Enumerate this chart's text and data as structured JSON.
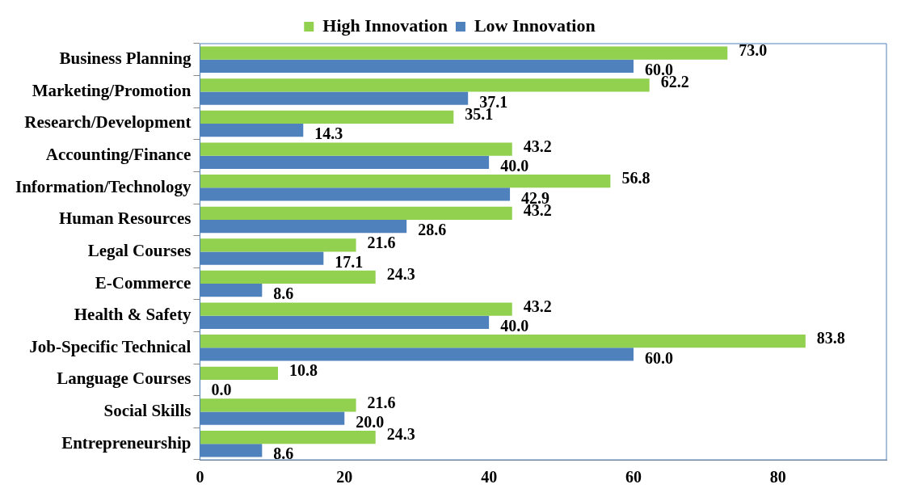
{
  "chart_data": {
    "type": "bar",
    "orientation": "horizontal",
    "categories": [
      "Business Planning",
      "Marketing/Promotion",
      "Research/Development",
      "Accounting/Finance",
      "Information/Technology",
      "Human Resources",
      "Legal Courses",
      "E-Commerce",
      "Health & Safety",
      "Job-Specific Technical",
      "Language Courses",
      "Social Skills",
      "Entrepreneurship"
    ],
    "series": [
      {
        "name": "High Innovation",
        "color": "#92d050",
        "values": [
          73.0,
          62.2,
          35.1,
          43.2,
          56.8,
          43.2,
          21.6,
          24.3,
          43.2,
          83.8,
          10.8,
          21.6,
          24.3
        ],
        "value_labels": [
          "73.0",
          "62.2",
          "35.1",
          "43.2",
          "56.8",
          "43.2",
          "21.6",
          "24.3",
          "43.2",
          "83.8",
          "10.8",
          "21.6",
          "24.3"
        ]
      },
      {
        "name": "Low Innovation",
        "color": "#4f81bd",
        "values": [
          60.0,
          37.1,
          14.3,
          40.0,
          42.9,
          28.6,
          17.1,
          8.6,
          40.0,
          60.0,
          0.0,
          20.0,
          8.6
        ],
        "value_labels": [
          "60.0",
          "37.1",
          "14.3",
          "40.0",
          "42.9",
          "28.6",
          "17.1",
          "8.6",
          "40.0",
          "60.0",
          "0.0",
          "20.0",
          "8.6"
        ]
      }
    ],
    "xlim": [
      0,
      95
    ],
    "xticks": [
      0,
      20,
      40,
      60,
      80
    ],
    "grid": false,
    "legend": "top"
  }
}
